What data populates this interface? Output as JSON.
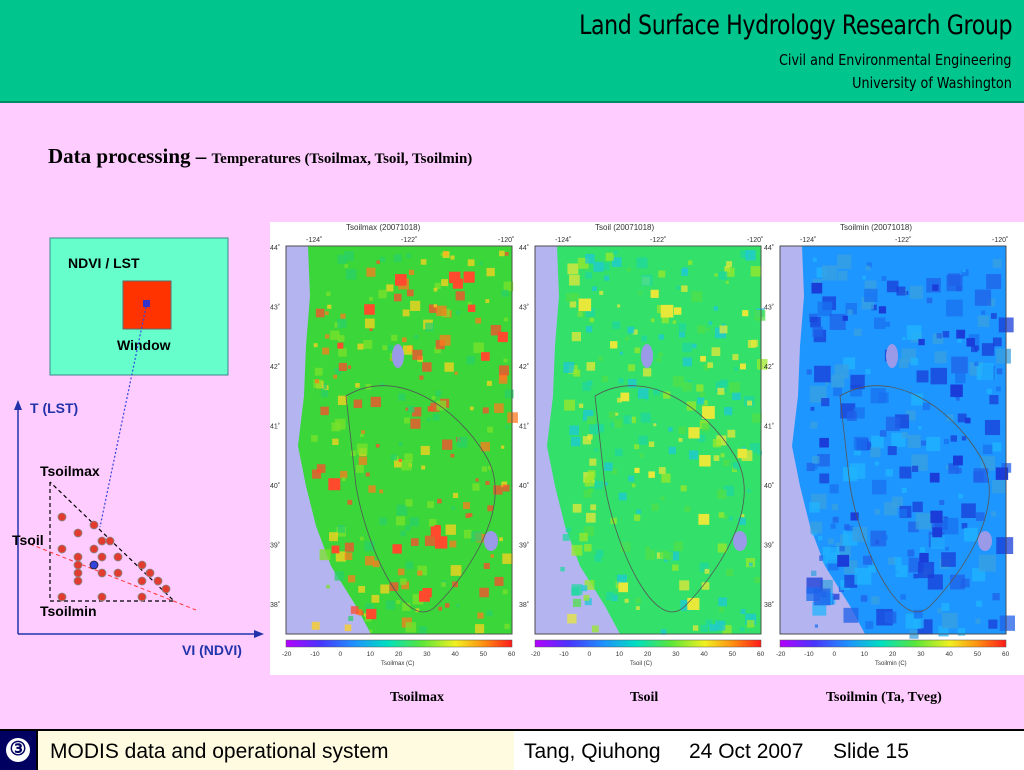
{
  "header": {
    "title": "Land Surface Hydrology Research Group",
    "subtitle1": "Civil and Environmental Engineering",
    "subtitle2": "University of Washington"
  },
  "slide": {
    "title_main": "Data processing – ",
    "title_sub": "Temperatures (Tsoilmax, Tsoil, Tsoilmin)"
  },
  "diagram": {
    "box_label": "NDVI / LST",
    "window_label": "Window",
    "y_axis_label": "T (LST)",
    "x_axis_label": "VI (NDVI)",
    "tsoilmax_label": "Tsoilmax",
    "tsoil_label": "Tsoil",
    "tsoilmin_label": "Tsoilmin"
  },
  "maps": [
    {
      "title": "Tsoilmax (20071018)",
      "colorbar_label": "Tsoilmax (C)",
      "caption": "Tsoilmax",
      "base_color": "#3ad63a",
      "accent": "#ff4a2e"
    },
    {
      "title": "Tsoil (20071018)",
      "colorbar_label": "Tsoil (C)",
      "caption": "Tsoil",
      "base_color": "#32e06a",
      "accent": "#e8e83a"
    },
    {
      "title": "Tsoilmin (20071018)",
      "colorbar_label": "Tsoilmin (C)",
      "caption": "Tsoilmin (Ta, Tveg)",
      "base_color": "#1e96ff",
      "accent": "#1a3cd8"
    }
  ],
  "map_axes": {
    "lon_ticks": [
      "-124˚",
      "-122˚",
      "-120˚"
    ],
    "lat_ticks": [
      "44˚",
      "43˚",
      "42˚",
      "41˚",
      "40˚",
      "39˚",
      "38˚"
    ],
    "colorbar_ticks": [
      "-20",
      "-10",
      "0",
      "10",
      "20",
      "30",
      "40",
      "50",
      "60"
    ]
  },
  "footer": {
    "slide_number_icon": "③",
    "topic": "MODIS data and operational system",
    "author": "Tang, Qiuhong",
    "date": "24 Oct 2007",
    "slide": "Slide 15"
  }
}
